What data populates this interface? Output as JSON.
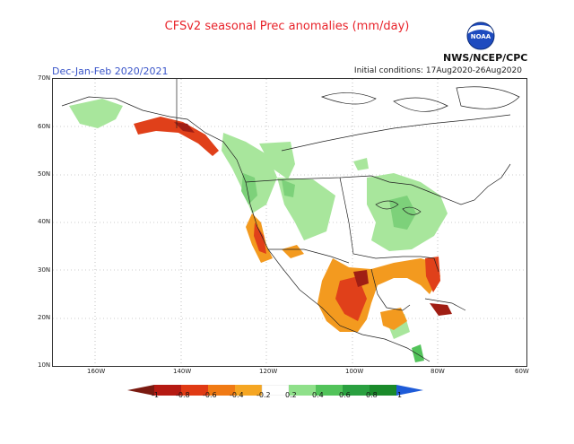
{
  "header": {
    "title": "CFSv2 seasonal Prec anomalies (mm/day)",
    "season": "Dec-Jan-Feb 2020/2021",
    "initial_conditions": "Initial conditions: 17Aug2020-26Aug2020",
    "agency": "NWS/NCEP/CPC",
    "logo_text": "NOAA"
  },
  "axes": {
    "lat_labels": [
      "70N",
      "60N",
      "50N",
      "40N",
      "30N",
      "20N",
      "10N"
    ],
    "lon_labels": [
      "160W",
      "140W",
      "120W",
      "100W",
      "80W",
      "60W"
    ]
  },
  "legend": {
    "labels": [
      "-1",
      "-0.8",
      "-0.6",
      "-0.4",
      "-0.2",
      "0.2",
      "0.4",
      "0.6",
      "0.8",
      "1"
    ],
    "colors": [
      "#7a1a10",
      "#b51a12",
      "#e03a14",
      "#f07a14",
      "#f5a623",
      "#ffffff",
      "#8fe08a",
      "#52c35a",
      "#2aa040",
      "#1a8a2a",
      "#1e5bd8"
    ]
  },
  "map_colors": {
    "wet_light": "#a8e69c",
    "wet": "#7dd17a",
    "dry_orange": "#f39a1f",
    "dry_red": "#e0401a",
    "dry_dark": "#a01e14"
  }
}
